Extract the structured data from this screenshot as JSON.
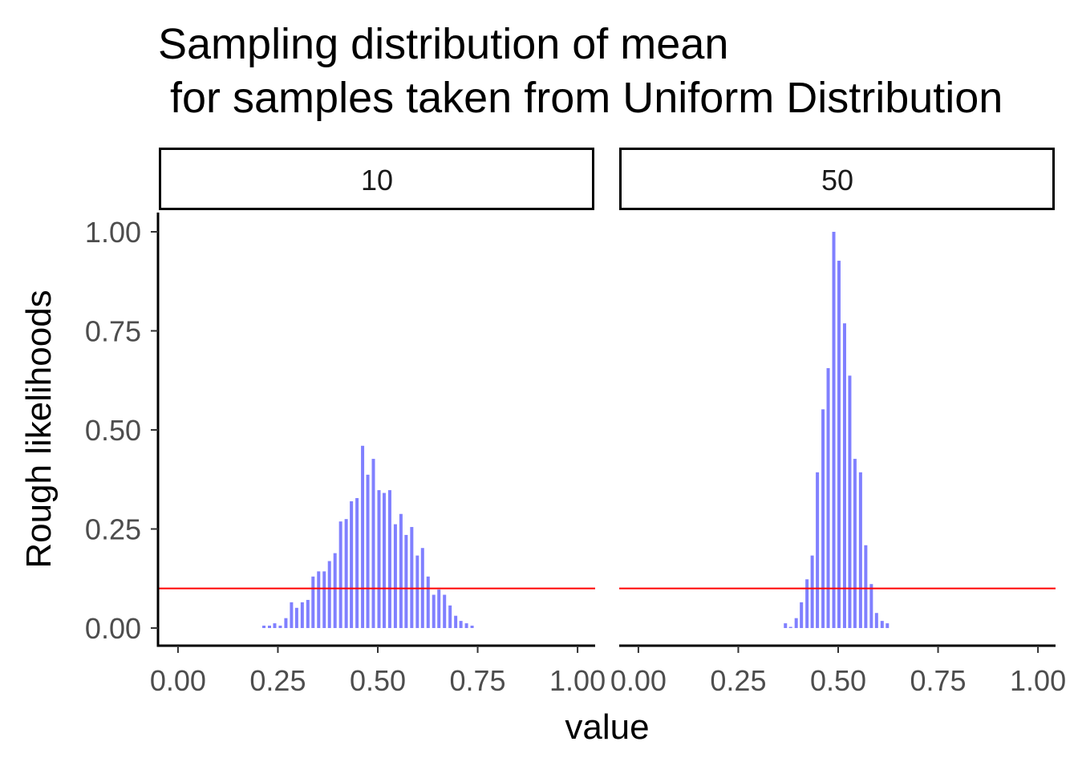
{
  "chart_data": {
    "type": "bar",
    "title_line1": "Sampling distribution of mean",
    "title_line2": " for samples taken from Uniform Distribution",
    "xlabel": "value",
    "ylabel": "Rough likelihoods",
    "xlim": [
      -0.048,
      1.044
    ],
    "ylim": [
      -0.0445,
      1.0486
    ],
    "x_ticks": [
      "0.00",
      "0.25",
      "0.50",
      "0.75",
      "1.00"
    ],
    "x_tick_values": [
      0,
      0.25,
      0.5,
      0.75,
      1.0
    ],
    "y_ticks": [
      "0.00",
      "0.25",
      "0.50",
      "0.75",
      "1.00"
    ],
    "y_tick_values": [
      0,
      0.25,
      0.5,
      0.75,
      1.0
    ],
    "hline": {
      "y": 0.1,
      "color": "#ff0000"
    },
    "bar_color": "#8080ff",
    "grid": false,
    "panels": [
      {
        "strip": "10",
        "x": [
          0.215,
          0.229,
          0.242,
          0.256,
          0.27,
          0.284,
          0.297,
          0.311,
          0.325,
          0.338,
          0.352,
          0.366,
          0.379,
          0.393,
          0.407,
          0.421,
          0.434,
          0.448,
          0.462,
          0.475,
          0.489,
          0.503,
          0.516,
          0.53,
          0.544,
          0.558,
          0.571,
          0.585,
          0.599,
          0.612,
          0.626,
          0.64,
          0.653,
          0.667,
          0.681,
          0.695,
          0.708,
          0.722,
          0.736
        ],
        "y": [
          0.006,
          0.006,
          0.012,
          0.006,
          0.025,
          0.065,
          0.051,
          0.065,
          0.071,
          0.13,
          0.143,
          0.143,
          0.169,
          0.189,
          0.269,
          0.275,
          0.32,
          0.328,
          0.46,
          0.387,
          0.427,
          0.348,
          0.341,
          0.348,
          0.262,
          0.288,
          0.235,
          0.255,
          0.183,
          0.202,
          0.13,
          0.084,
          0.097,
          0.084,
          0.057,
          0.031,
          0.018,
          0.012,
          0.006
        ]
      },
      {
        "strip": "50",
        "x": [
          0.368,
          0.381,
          0.395,
          0.408,
          0.422,
          0.435,
          0.448,
          0.462,
          0.475,
          0.489,
          0.502,
          0.516,
          0.529,
          0.542,
          0.556,
          0.569,
          0.583,
          0.596,
          0.61,
          0.623
        ],
        "y": [
          0.012,
          0.003,
          0.025,
          0.065,
          0.123,
          0.183,
          0.393,
          0.552,
          0.656,
          1.0,
          0.927,
          0.769,
          0.637,
          0.427,
          0.393,
          0.209,
          0.111,
          0.038,
          0.018,
          0.012
        ]
      }
    ]
  }
}
